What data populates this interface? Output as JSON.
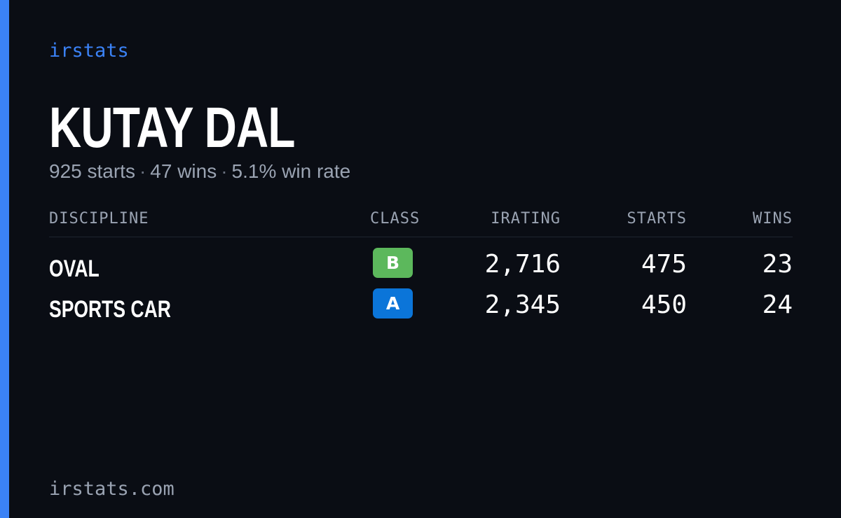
{
  "brand": "irstats",
  "driver_name": "KUTAY DAL",
  "summary": {
    "starts": "925 starts",
    "wins": "47 wins",
    "win_rate": "5.1% win rate",
    "separator": "·"
  },
  "table": {
    "headers": {
      "discipline": "DISCIPLINE",
      "class": "CLASS",
      "irating": "IRATING",
      "starts": "STARTS",
      "wins": "WINS"
    },
    "rows": [
      {
        "discipline": "OVAL",
        "class": "B",
        "class_color": "#5cb85c",
        "irating": "2,716",
        "starts": "475",
        "wins": "23"
      },
      {
        "discipline": "SPORTS CAR",
        "class": "A",
        "class_color": "#0b75d9",
        "irating": "2,345",
        "starts": "450",
        "wins": "24"
      }
    ]
  },
  "footer_url": "irstats.com",
  "colors": {
    "background": "#0a0d14",
    "accent": "#3b82f6",
    "muted_text": "#9aa3b2"
  }
}
